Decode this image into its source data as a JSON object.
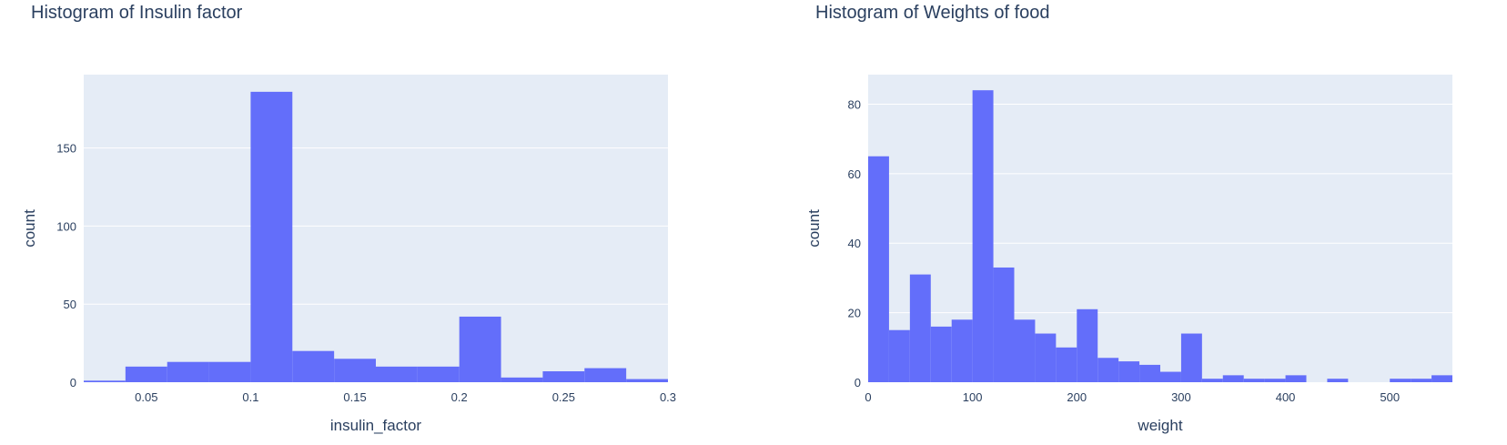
{
  "chart_data": [
    {
      "type": "bar",
      "title": "Histogram of Insulin factor",
      "xlabel": "insulin_factor",
      "ylabel": "count",
      "xlim": [
        0.02,
        0.3
      ],
      "ylim": [
        0,
        197
      ],
      "xticks": [
        "0.05",
        "0.1",
        "0.15",
        "0.2",
        "0.25",
        "0.3"
      ],
      "xtick_values": [
        0.05,
        0.1,
        0.15,
        0.2,
        0.25,
        0.3
      ],
      "yticks": [
        "0",
        "50",
        "100",
        "150"
      ],
      "ytick_values": [
        0,
        50,
        100,
        150
      ],
      "bin_edges": [
        0.02,
        0.04,
        0.06,
        0.08,
        0.1,
        0.12,
        0.14,
        0.16,
        0.18,
        0.2,
        0.22,
        0.24,
        0.26,
        0.28,
        0.3
      ],
      "values": [
        1,
        10,
        13,
        13,
        186,
        20,
        15,
        10,
        10,
        42,
        3,
        7,
        9,
        2
      ],
      "grid": true,
      "color": "#636efa",
      "plot_bg": "#e5ecf6"
    },
    {
      "type": "bar",
      "title": "Histogram of Weights of food",
      "xlabel": "weight",
      "ylabel": "count",
      "xlim": [
        0,
        560
      ],
      "ylim": [
        0,
        88.5
      ],
      "xticks": [
        "0",
        "100",
        "200",
        "300",
        "400",
        "500"
      ],
      "xtick_values": [
        0,
        100,
        200,
        300,
        400,
        500
      ],
      "yticks": [
        "0",
        "20",
        "40",
        "60",
        "80"
      ],
      "ytick_values": [
        0,
        20,
        40,
        60,
        80
      ],
      "bin_edges": [
        0,
        20,
        40,
        60,
        80,
        100,
        120,
        140,
        160,
        180,
        200,
        220,
        240,
        260,
        280,
        300,
        320,
        340,
        360,
        380,
        400,
        420,
        440,
        460,
        480,
        500,
        520,
        540,
        560
      ],
      "values": [
        65,
        15,
        31,
        16,
        18,
        84,
        33,
        18,
        14,
        10,
        21,
        7,
        6,
        5,
        3,
        14,
        1,
        2,
        1,
        1,
        2,
        0,
        1,
        0,
        0,
        1,
        1,
        2
      ],
      "grid": true,
      "color": "#636efa",
      "plot_bg": "#e5ecf6"
    }
  ]
}
